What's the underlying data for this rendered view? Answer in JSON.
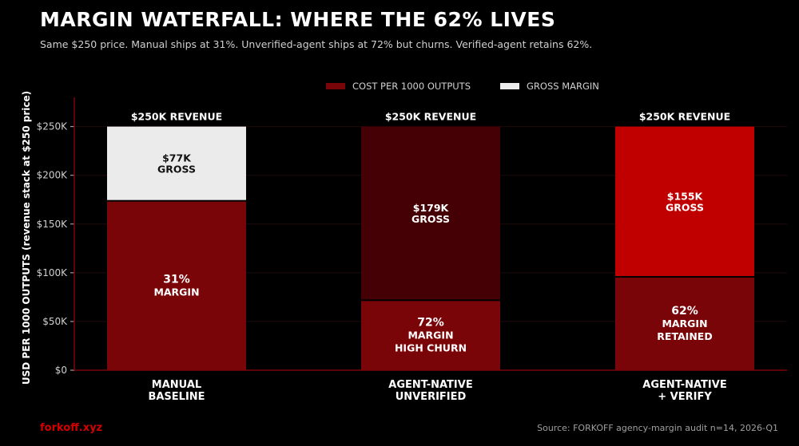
{
  "header": {
    "title": "MARGIN WATERFALL: WHERE THE 62% LIVES",
    "subtitle": "Same $250 price. Manual ships at 31%. Unverified-agent ships at 72% but churns. Verified-agent retains 62%."
  },
  "footer": {
    "brand": "forkoff.xyz",
    "source": "Source: FORKOFF agency-margin audit n=14, 2026-Q1"
  },
  "colors": {
    "cost": "#7a0508",
    "gross_manual": "#ebebeb",
    "gross_unverified": "#450005",
    "gross_verified": "#c00000",
    "axis": "#7a0508",
    "grid": "#1e0a0a"
  },
  "chart_data": {
    "type": "bar",
    "stacked": true,
    "title": "",
    "xlabel": "",
    "ylabel": "USD PER 1000 OUTPUTS  (revenue stack at $250 price)",
    "ylim": [
      0,
      280
    ],
    "yticks": [
      0,
      50,
      100,
      150,
      200,
      250
    ],
    "ytick_labels": [
      "$0",
      "$50K",
      "$100K",
      "$150K",
      "$200K",
      "$250K"
    ],
    "grid": true,
    "legend_position": "top-center",
    "categories": [
      {
        "label_line1": "MANUAL",
        "label_line2": "BASELINE"
      },
      {
        "label_line1": "AGENT-NATIVE",
        "label_line2": "UNVERIFIED"
      },
      {
        "label_line1": "AGENT-NATIVE",
        "label_line2": "+ VERIFY"
      }
    ],
    "series": [
      {
        "name": "COST PER 1000 OUTPUTS",
        "values": [
          173,
          71,
          95
        ],
        "labels": [
          [
            "31%",
            "MARGIN"
          ],
          [
            "72%",
            "MARGIN",
            "HIGH CHURN"
          ],
          [
            "62%",
            "MARGIN",
            "RETAINED"
          ]
        ]
      },
      {
        "name": "GROSS MARGIN",
        "values": [
          77,
          179,
          155
        ],
        "labels": [
          [
            "$77K",
            "GROSS"
          ],
          [
            "$179K",
            "GROSS"
          ],
          [
            "$155K",
            "GROSS"
          ]
        ]
      }
    ],
    "totals": [
      250,
      250,
      250
    ],
    "total_labels": [
      "$250K REVENUE",
      "$250K REVENUE",
      "$250K REVENUE"
    ]
  }
}
